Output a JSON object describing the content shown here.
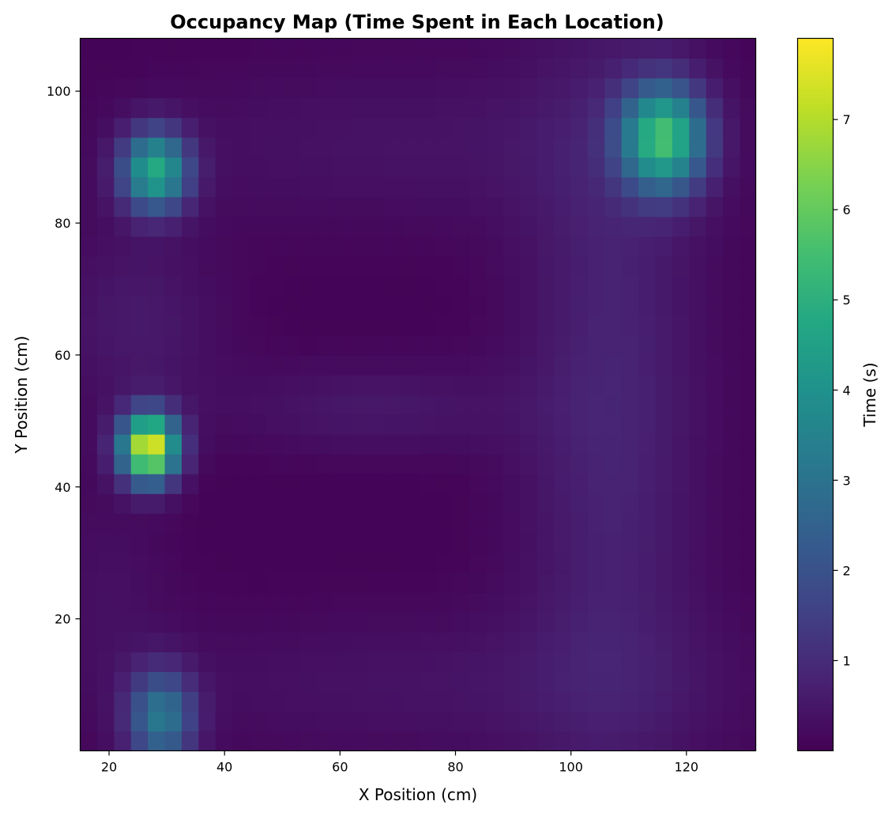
{
  "chart_data": {
    "type": "heatmap",
    "title": "Occupancy Map (Time Spent in Each Location)",
    "xlabel": "X Position (cm)",
    "ylabel": "Y Position (cm)",
    "colorbar_label": "Time (s)",
    "colormap": "viridis",
    "xlim": [
      15,
      132
    ],
    "ylim": [
      0,
      108
    ],
    "clim": [
      0.0,
      7.9
    ],
    "x_ticks": [
      20,
      40,
      60,
      80,
      100,
      120
    ],
    "y_ticks": [
      20,
      40,
      60,
      80,
      100
    ],
    "colorbar_ticks": [
      1,
      2,
      3,
      4,
      5,
      6,
      7
    ],
    "grid": false,
    "bins": {
      "x_edges_start": 15,
      "x_bin_width": 2.93,
      "nx": 40,
      "y_edges_start": 0,
      "y_bin_width": 3.0,
      "ny": 36
    },
    "baseline_time": 0.06,
    "hotspots": [
      {
        "x": 27,
        "y": 46,
        "sx": 3.4,
        "sy": 3.6,
        "peak": 7.6
      },
      {
        "x": 28,
        "y": 88,
        "sx": 4.0,
        "sy": 4.2,
        "peak": 4.6
      },
      {
        "x": 116,
        "y": 93,
        "sx": 5.0,
        "sy": 5.5,
        "peak": 5.1
      },
      {
        "x": 29,
        "y": 5,
        "sx": 4.0,
        "sy": 5.0,
        "peak": 3.0
      }
    ],
    "ridges": [
      {
        "x": 107,
        "y": 52,
        "sx": 11,
        "sy": 45,
        "peak": 0.75
      },
      {
        "x": 66,
        "y": 52,
        "sx": 18,
        "sy": 5,
        "peak": 0.45
      },
      {
        "x": 80,
        "y": 10,
        "sx": 40,
        "sy": 8,
        "peak": 0.35
      },
      {
        "x": 72,
        "y": 92,
        "sx": 35,
        "sy": 9,
        "peak": 0.35
      },
      {
        "x": 25,
        "y": 65,
        "sx": 10,
        "sy": 10,
        "peak": 0.5
      },
      {
        "x": 20,
        "y": 25,
        "sx": 8,
        "sy": 12,
        "peak": 0.25
      }
    ]
  }
}
